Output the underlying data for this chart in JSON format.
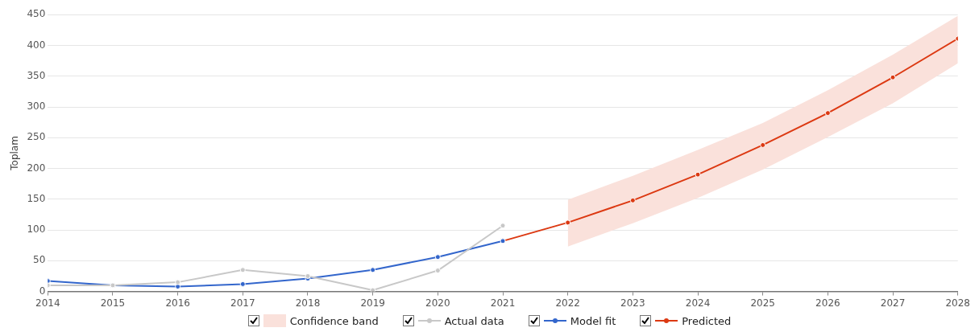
{
  "chart_data": {
    "type": "line",
    "ylabel": "Toplam",
    "x": [
      2014,
      2015,
      2016,
      2017,
      2018,
      2019,
      2020,
      2021
    ],
    "xlim": [
      2014,
      2028
    ],
    "xticks": [
      2014,
      2015,
      2016,
      2017,
      2018,
      2019,
      2020,
      2021,
      2022,
      2023,
      2024,
      2025,
      2026,
      2027,
      2028
    ],
    "ylim": [
      0,
      450
    ],
    "yticks": [
      0,
      50,
      100,
      150,
      200,
      250,
      300,
      350,
      400,
      450
    ],
    "grid": "y",
    "legend": "bottom",
    "marker": "circle",
    "line_style": "solid",
    "annotations": [
      "Confidence band"
    ],
    "series": [
      {
        "name": "Actual data",
        "color": "#c8c8c8",
        "values": [
          10,
          10,
          15,
          35,
          25,
          2,
          34,
          107
        ]
      },
      {
        "name": "Model fit",
        "color": "#3366cc",
        "values": [
          17,
          10,
          8,
          12,
          21,
          35,
          56,
          82
        ]
      },
      {
        "name": "Predicted",
        "color": "#dc3912",
        "x": [
          2021,
          2022,
          2023,
          2024,
          2025,
          2026,
          2027,
          2028
        ],
        "values": [
          82,
          112,
          148,
          190,
          238,
          290,
          348,
          411
        ],
        "lower": [
          null,
          73,
          111,
          152,
          198,
          251,
          306,
          371
        ],
        "upper": [
          null,
          149,
          188,
          230,
          274,
          327,
          385,
          448
        ]
      }
    ]
  }
}
